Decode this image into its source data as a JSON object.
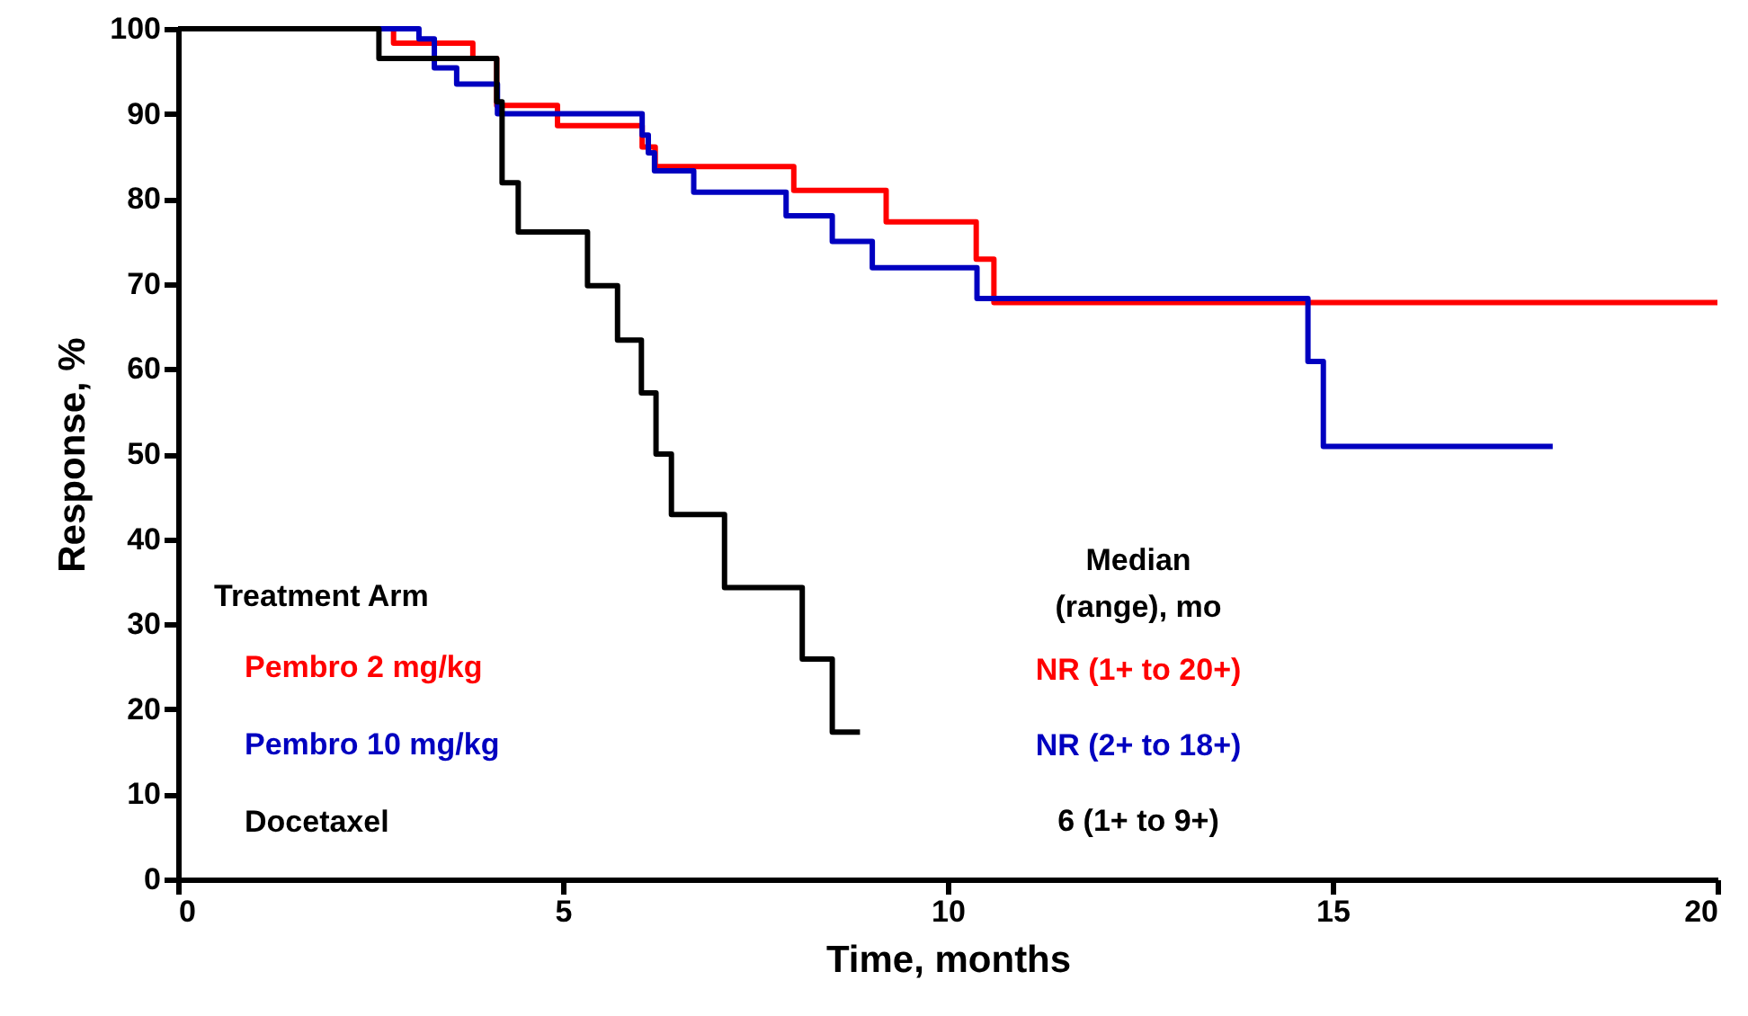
{
  "chart_data": {
    "type": "step",
    "xlabel": "Time, months",
    "ylabel": "Response, %",
    "legend_title": "Treatment Arm",
    "xlim": [
      0,
      20
    ],
    "xticks": [
      0,
      5,
      10,
      15,
      20
    ],
    "ylim": [
      0,
      100
    ],
    "yticks": [
      0,
      10,
      20,
      30,
      40,
      50,
      60,
      70,
      80,
      90,
      100
    ],
    "grid": false,
    "legend": "bottom left",
    "marker": "none",
    "line_style": "solid",
    "series": [
      {
        "name": "Pembro 2 mg/kg",
        "color": "#ff0000",
        "x": [
          0,
          2.8,
          3.83,
          4.14,
          4.93,
          6.03,
          6.2,
          8.0,
          9.2,
          10.37,
          10.6,
          20
        ],
        "values": [
          100,
          98.3,
          96.5,
          91.0,
          88.6,
          86.1,
          83.8,
          81.0,
          77.3,
          72.9,
          67.8,
          67.8
        ]
      },
      {
        "name": "Pembro 10 mg/kg",
        "color": "#0000c0",
        "x": [
          0,
          3.13,
          3.33,
          3.62,
          4.15,
          6.03,
          6.11,
          6.19,
          6.7,
          7.9,
          8.5,
          9.02,
          10.38,
          14.68,
          14.88,
          17.86
        ],
        "values": [
          100,
          98.8,
          95.4,
          93.5,
          90.0,
          87.5,
          85.4,
          83.3,
          80.8,
          78.0,
          75.0,
          71.9,
          68.3,
          60.9,
          50.9,
          50.9
        ]
      },
      {
        "name": "Docetaxel",
        "color": "#000000",
        "x": [
          0,
          2.61,
          4.14,
          4.21,
          4.42,
          5.32,
          5.71,
          6.02,
          6.21,
          6.41,
          7.1,
          8.11,
          8.5,
          8.86
        ],
        "values": [
          100,
          96.5,
          91.4,
          81.9,
          76.1,
          69.8,
          63.4,
          57.2,
          50.0,
          42.9,
          34.3,
          25.9,
          17.3,
          17.3
        ]
      }
    ],
    "annotations": [
      "Median",
      "(range), mo",
      "NR (1+ to 20+)",
      "NR (2+ to 18+)",
      "6 (1+ to 9+)"
    ]
  }
}
